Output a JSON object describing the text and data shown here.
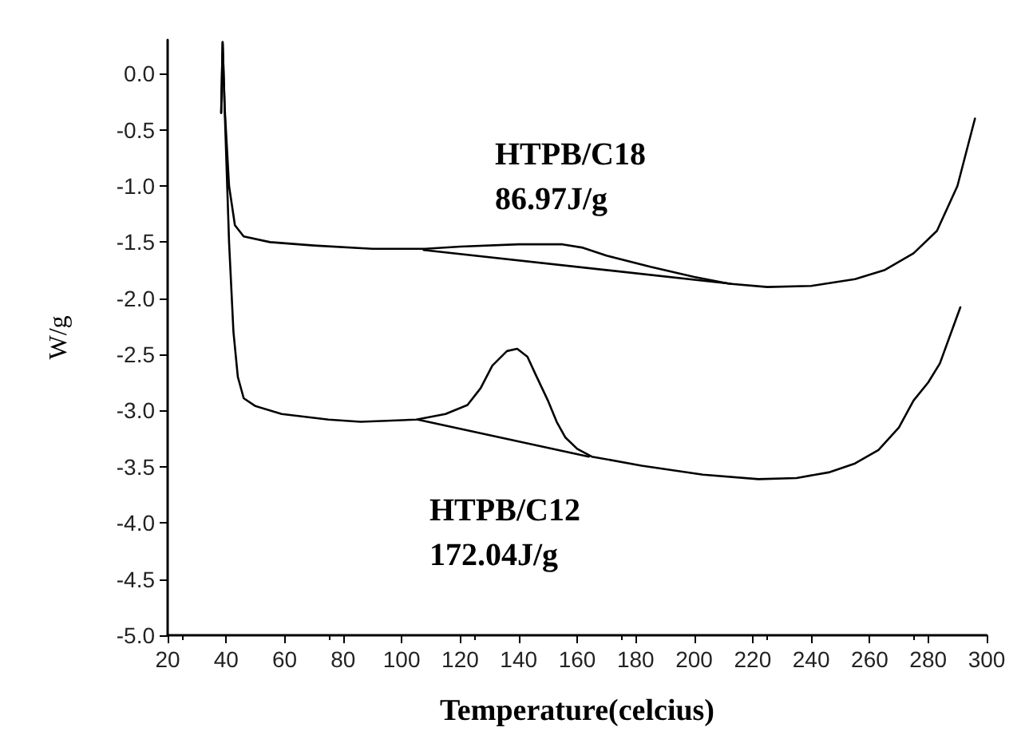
{
  "chart_data": {
    "type": "line",
    "xlabel": "Temperature(celcius)",
    "ylabel": "W/g",
    "xlim": [
      20,
      300
    ],
    "xticks": [
      20,
      40,
      60,
      80,
      100,
      120,
      140,
      160,
      180,
      200,
      220,
      240,
      260,
      280,
      300
    ],
    "ylim": [
      -5,
      0.3
    ],
    "yticks": [
      {
        "value": -5,
        "label": "-5.0"
      },
      -4.5,
      {
        "value": -4,
        "label": "-4.0"
      },
      -3.5,
      {
        "value": -3,
        "label": "-3.0"
      },
      -2.5,
      {
        "value": -2,
        "label": "-2.0"
      },
      -1.5,
      {
        "value": -1,
        "label": "-1.0"
      },
      -0.5,
      {
        "value": 0,
        "label": "0.0"
      }
    ],
    "grid": false,
    "marker": "none",
    "line_style": "solid",
    "series": [
      {
        "color": "#000000",
        "x": [
          38.3,
          38.8,
          39.5,
          41,
          43,
          46,
          55,
          70,
          90,
          108,
          120,
          140,
          155,
          162,
          170,
          185,
          200,
          212,
          225,
          240,
          255,
          265,
          275,
          283,
          290,
          296
        ],
        "values": [
          -0.35,
          0.28,
          -0.3,
          -1.0,
          -1.35,
          -1.45,
          -1.5,
          -1.53,
          -1.56,
          -1.56,
          -1.54,
          -1.52,
          -1.52,
          -1.55,
          -1.62,
          -1.72,
          -1.81,
          -1.87,
          -1.9,
          -1.89,
          -1.83,
          -1.75,
          -1.6,
          -1.4,
          -1.0,
          -0.4
        ]
      },
      {
        "color": "#000000",
        "x": [
          107.5,
          212.5
        ],
        "values": [
          -1.57,
          -1.87
        ]
      },
      {
        "color": "#000000",
        "x": [
          38.3,
          38.8,
          39.6,
          41,
          42.5,
          44,
          46,
          50,
          59,
          75,
          86,
          105,
          115,
          122.5,
          127,
          131,
          136,
          139.5,
          143,
          146,
          150,
          153,
          156,
          160,
          165,
          182,
          203,
          222,
          235,
          246,
          255,
          263,
          270,
          275,
          280,
          284,
          291
        ],
        "values": [
          -0.35,
          0.28,
          -0.4,
          -1.5,
          -2.3,
          -2.7,
          -2.89,
          -2.96,
          -3.03,
          -3.08,
          -3.1,
          -3.08,
          -3.03,
          -2.95,
          -2.8,
          -2.6,
          -2.47,
          -2.45,
          -2.52,
          -2.69,
          -2.91,
          -3.1,
          -3.24,
          -3.34,
          -3.41,
          -3.49,
          -3.57,
          -3.61,
          -3.6,
          -3.55,
          -3.47,
          -3.35,
          -3.15,
          -2.91,
          -2.75,
          -2.58,
          -2.08
        ]
      },
      {
        "color": "#000000",
        "x": [
          105.5,
          164
        ],
        "values": [
          -3.08,
          -3.41
        ]
      }
    ],
    "annotations": [
      "HTPB/C18\n86.97J/g",
      "HTPB/C12\n172.04J/g"
    ]
  }
}
